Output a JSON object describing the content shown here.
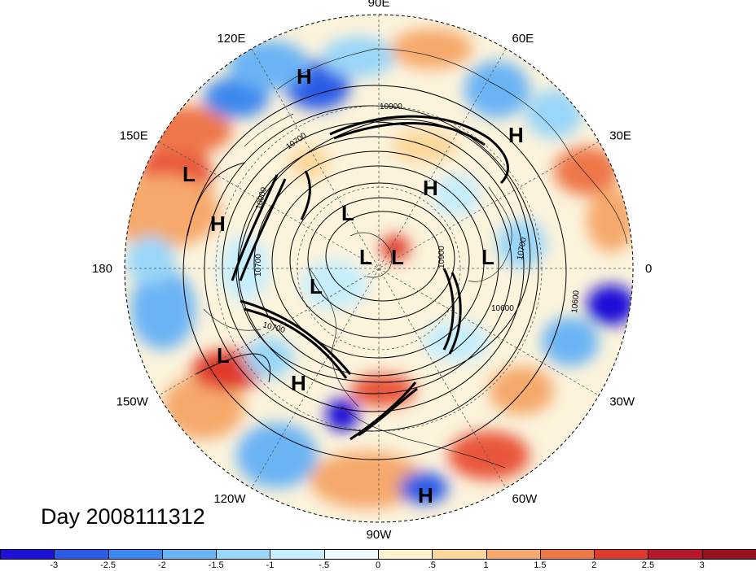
{
  "map": {
    "longitude_labels": [
      {
        "text": "90E",
        "lon": 90
      },
      {
        "text": "60E",
        "lon": 60
      },
      {
        "text": "30E",
        "lon": 30
      },
      {
        "text": "0",
        "lon": 0
      },
      {
        "text": "30W",
        "lon": -30
      },
      {
        "text": "60W",
        "lon": -60
      },
      {
        "text": "90W",
        "lon": -90
      },
      {
        "text": "120W",
        "lon": -120
      },
      {
        "text": "150W",
        "lon": -150
      },
      {
        "text": "180",
        "lon": 180
      },
      {
        "text": "150E",
        "lon": 150
      },
      {
        "text": "120E",
        "lon": 120
      }
    ],
    "pressure_centers": [
      "H",
      "H",
      "H",
      "H",
      "H",
      "H",
      "L",
      "L",
      "L",
      "L",
      "L",
      "L",
      "L"
    ],
    "contour_labels": [
      "10900",
      "10700",
      "10900",
      "10700",
      "10700",
      "10600",
      "10900",
      "10700",
      "10600"
    ]
  },
  "day_label": "Day 2008111312",
  "colorbar": {
    "ticks": [
      "-3",
      "-2.5",
      "-2",
      "-1.5",
      "-1",
      "-.5",
      "0",
      ".5",
      "1",
      "1.5",
      "2",
      "2.5",
      "3"
    ],
    "colors": [
      "#1e10d8",
      "#2b5ce6",
      "#3c88ee",
      "#6ab4f4",
      "#9ad6f8",
      "#c6eefc",
      "#f0fbff",
      "#fff4cc",
      "#fbd79a",
      "#f6a96c",
      "#ee7748",
      "#e03a2c",
      "#b8162a",
      "#99111e"
    ]
  }
}
